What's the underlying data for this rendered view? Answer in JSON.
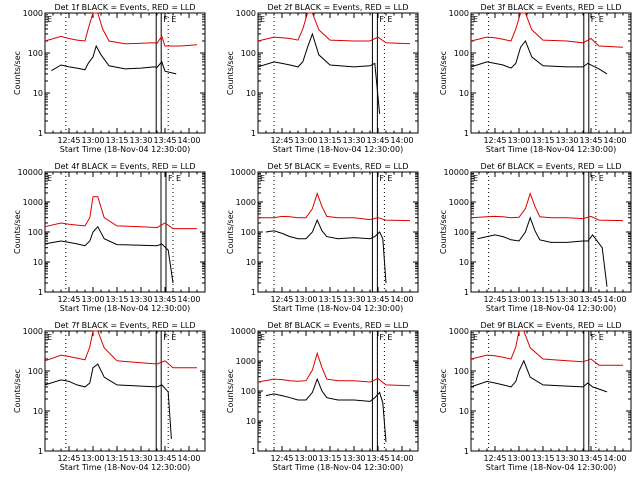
{
  "chart_data": [
    {
      "type": "line",
      "title": "Det 1f BLACK = Events, RED = LLD",
      "xlabel": "Start Time (18-Nov-04 12:30:00)",
      "ylabel": "Counts/sec",
      "ylog": true,
      "ylim": [
        1,
        1000
      ],
      "yticks": [
        "1",
        "10",
        "100",
        "1000"
      ],
      "xlim": [
        "12:30",
        "14:10"
      ],
      "xticks": [
        "12:45",
        "13:00",
        "13:15",
        "13:30",
        "13:45",
        "14:00"
      ],
      "vlines_dotted": [
        "12:43",
        "13:47"
      ],
      "flags_text": [
        "E",
        "F",
        "E"
      ],
      "series": [
        {
          "color": "#000000",
          "x": [
            "12:34",
            "12:40",
            "12:45",
            "12:50",
            "12:55",
            "12:57",
            "13:00",
            "13:02",
            "13:05",
            "13:10",
            "13:20",
            "13:30",
            "13:38",
            "13:40",
            "13:43",
            "13:45",
            "13:52"
          ],
          "y": [
            36,
            50,
            45,
            42,
            38,
            55,
            80,
            150,
            90,
            48,
            40,
            42,
            45,
            44,
            60,
            35,
            30
          ]
        },
        {
          "color": "#dd0000",
          "x": [
            "12:30",
            "12:40",
            "12:45",
            "12:50",
            "12:55",
            "12:57",
            "13:00",
            "13:03",
            "13:06",
            "13:10",
            "13:20",
            "13:30",
            "13:38",
            "13:40",
            "13:43",
            "13:45",
            "13:55",
            "14:05"
          ],
          "y": [
            200,
            260,
            230,
            210,
            200,
            400,
            1000,
            1000,
            400,
            200,
            170,
            175,
            180,
            175,
            260,
            150,
            150,
            160
          ]
        }
      ]
    },
    {
      "type": "line",
      "title": "Det 2f BLACK = Events, RED = LLD",
      "xlabel": "Start Time (18-Nov-04 12:30:00)",
      "ylabel": "Counts/sec",
      "ylog": true,
      "ylim": [
        1,
        1000
      ],
      "yticks": [
        "1",
        "10",
        "100",
        "1000"
      ],
      "xlim": [
        "12:30",
        "14:10"
      ],
      "xticks": [
        "12:45",
        "13:00",
        "13:15",
        "13:30",
        "13:45",
        "14:00"
      ],
      "vlines_dotted": [
        "12:40",
        "13:49"
      ],
      "flags_text": [
        "E",
        "F",
        "E"
      ],
      "series": [
        {
          "color": "#000000",
          "x": [
            "12:30",
            "12:40",
            "12:45",
            "12:50",
            "12:55",
            "12:58",
            "13:01",
            "13:04",
            "13:08",
            "13:15",
            "13:30",
            "13:40",
            "13:43",
            "13:46"
          ],
          "y": [
            45,
            60,
            55,
            50,
            45,
            60,
            140,
            300,
            90,
            50,
            45,
            48,
            55,
            3
          ]
        },
        {
          "color": "#dd0000",
          "x": [
            "12:30",
            "12:40",
            "12:45",
            "12:50",
            "12:55",
            "12:58",
            "13:01",
            "13:04",
            "13:08",
            "13:15",
            "13:30",
            "13:40",
            "13:45",
            "13:50",
            "14:05"
          ],
          "y": [
            200,
            250,
            240,
            230,
            210,
            400,
            1000,
            1000,
            380,
            210,
            200,
            200,
            250,
            180,
            170
          ]
        }
      ]
    },
    {
      "type": "line",
      "title": "Det 3f BLACK = Events, RED = LLD",
      "xlabel": "Start Time (18-Nov-04 12:30:00)",
      "ylabel": "Counts/sec",
      "ylog": true,
      "ylim": [
        1,
        1000
      ],
      "yticks": [
        "1",
        "10",
        "100",
        "1000"
      ],
      "xlim": [
        "12:30",
        "14:10"
      ],
      "xticks": [
        "12:45",
        "13:00",
        "13:15",
        "13:30",
        "13:45",
        "14:00"
      ],
      "vlines_dotted": [
        "12:41",
        "13:48"
      ],
      "flags_text": [
        "E",
        "F",
        "E"
      ],
      "series": [
        {
          "color": "#000000",
          "x": [
            "12:30",
            "12:40",
            "12:45",
            "12:50",
            "12:55",
            "12:58",
            "13:01",
            "13:04",
            "13:08",
            "13:15",
            "13:30",
            "13:40",
            "13:43",
            "13:50",
            "13:55"
          ],
          "y": [
            45,
            60,
            55,
            50,
            42,
            55,
            140,
            200,
            80,
            48,
            45,
            45,
            55,
            40,
            30
          ]
        },
        {
          "color": "#dd0000",
          "x": [
            "12:30",
            "12:40",
            "12:45",
            "12:50",
            "12:55",
            "12:58",
            "13:01",
            "13:04",
            "13:08",
            "13:15",
            "13:30",
            "13:40",
            "13:45",
            "13:50",
            "14:05"
          ],
          "y": [
            200,
            250,
            240,
            220,
            200,
            400,
            1000,
            1000,
            380,
            210,
            200,
            180,
            230,
            150,
            140
          ]
        }
      ]
    },
    {
      "type": "line",
      "title": "Det 4f BLACK = Events, RED = LLD",
      "xlabel": "Start Time (18-Nov-04 12:30:00)",
      "ylabel": "Counts/sec",
      "ylog": true,
      "ylim": [
        1,
        10000
      ],
      "yticks": [
        "1",
        "10",
        "100",
        "1000",
        "10000"
      ],
      "xlim": [
        "12:30",
        "14:10"
      ],
      "xticks": [
        "12:45",
        "13:00",
        "13:15",
        "13:30",
        "13:45",
        "14:00"
      ],
      "vlines_dotted": [
        "12:43",
        "13:50"
      ],
      "flags_text": [
        "E",
        "F",
        "E"
      ],
      "series": [
        {
          "color": "#000000",
          "x": [
            "12:30",
            "12:40",
            "12:45",
            "12:50",
            "12:55",
            "12:58",
            "13:00",
            "13:03",
            "13:07",
            "13:15",
            "13:30",
            "13:40",
            "13:43",
            "13:47",
            "13:50"
          ],
          "y": [
            40,
            50,
            45,
            40,
            35,
            50,
            100,
            150,
            60,
            38,
            36,
            35,
            40,
            25,
            2
          ]
        },
        {
          "color": "#dd0000",
          "x": [
            "12:30",
            "12:40",
            "12:45",
            "12:50",
            "12:55",
            "12:58",
            "13:00",
            "13:03",
            "13:07",
            "13:15",
            "13:30",
            "13:40",
            "13:45",
            "13:50",
            "14:05"
          ],
          "y": [
            150,
            200,
            180,
            170,
            160,
            300,
            1500,
            1500,
            300,
            160,
            150,
            140,
            200,
            130,
            130
          ]
        }
      ]
    },
    {
      "type": "line",
      "title": "Det 5f BLACK = Events, RED = LLD",
      "xlabel": "Start Time (18-Nov-04 12:30:00)",
      "ylabel": "Counts/sec",
      "ylog": true,
      "ylim": [
        1,
        10000
      ],
      "yticks": [
        "1",
        "10",
        "100",
        "1000",
        "10000"
      ],
      "xlim": [
        "12:30",
        "14:10"
      ],
      "xticks": [
        "12:45",
        "13:00",
        "13:15",
        "13:30",
        "13:45",
        "14:00"
      ],
      "vlines_dotted": [
        "12:40",
        "13:49"
      ],
      "flags_text": [
        "E",
        "F",
        "E"
      ],
      "series": [
        {
          "color": "#000000",
          "x": [
            "12:35",
            "12:40",
            "12:45",
            "12:50",
            "12:55",
            "13:00",
            "13:04",
            "13:07",
            "13:10",
            "13:13",
            "13:20",
            "13:30",
            "13:40",
            "13:43",
            "13:46",
            "13:48",
            "13:50"
          ],
          "y": [
            100,
            110,
            90,
            70,
            60,
            60,
            100,
            250,
            110,
            70,
            60,
            65,
            60,
            70,
            100,
            60,
            2
          ]
        },
        {
          "color": "#dd0000",
          "x": [
            "12:30",
            "12:40",
            "12:45",
            "12:50",
            "12:55",
            "13:00",
            "13:04",
            "13:07",
            "13:10",
            "13:13",
            "13:20",
            "13:30",
            "13:40",
            "13:45",
            "13:50",
            "14:05"
          ],
          "y": [
            300,
            300,
            330,
            320,
            300,
            300,
            600,
            1900,
            700,
            330,
            300,
            300,
            260,
            300,
            250,
            240
          ]
        }
      ]
    },
    {
      "type": "line",
      "title": "Det 6f BLACK = Events, RED = LLD",
      "xlabel": "Start Time (18-Nov-04 12:30:00)",
      "ylabel": "Counts/sec",
      "ylog": true,
      "ylim": [
        1,
        10000
      ],
      "yticks": [
        "1",
        "10",
        "100",
        "1000",
        "10000"
      ],
      "xlim": [
        "12:30",
        "14:10"
      ],
      "xticks": [
        "12:45",
        "13:00",
        "13:15",
        "13:30",
        "13:45",
        "14:00"
      ],
      "vlines_dotted": [
        "12:41",
        "13:48"
      ],
      "flags_text": [
        "E",
        "F",
        "E"
      ],
      "series": [
        {
          "color": "#000000",
          "x": [
            "12:34",
            "12:40",
            "12:45",
            "12:50",
            "12:55",
            "13:00",
            "13:04",
            "13:07",
            "13:10",
            "13:13",
            "13:20",
            "13:30",
            "13:40",
            "13:43",
            "13:46",
            "13:52",
            "13:55"
          ],
          "y": [
            60,
            70,
            80,
            70,
            55,
            50,
            100,
            300,
            110,
            55,
            45,
            45,
            50,
            50,
            80,
            30,
            1.5
          ]
        },
        {
          "color": "#dd0000",
          "x": [
            "12:30",
            "12:40",
            "12:45",
            "12:50",
            "12:55",
            "13:00",
            "13:04",
            "13:07",
            "13:10",
            "13:13",
            "13:20",
            "13:30",
            "13:40",
            "13:45",
            "13:50",
            "14:05"
          ],
          "y": [
            300,
            320,
            330,
            320,
            300,
            310,
            600,
            1900,
            700,
            320,
            300,
            300,
            280,
            330,
            250,
            240
          ]
        }
      ]
    },
    {
      "type": "line",
      "title": "Det 7f BLACK = Events, RED = LLD",
      "xlabel": "Start Time (18-Nov-04 12:30:00)",
      "ylabel": "Counts/sec",
      "ylog": true,
      "ylim": [
        1,
        1000
      ],
      "yticks": [
        "1",
        "10",
        "100",
        "1000"
      ],
      "xlim": [
        "12:30",
        "14:10"
      ],
      "xticks": [
        "12:45",
        "13:00",
        "13:15",
        "13:30",
        "13:45",
        "14:00"
      ],
      "vlines_dotted": [
        "12:43",
        "13:47"
      ],
      "flags_text": [
        "E",
        "F",
        "E"
      ],
      "series": [
        {
          "color": "#000000",
          "x": [
            "12:30",
            "12:40",
            "12:45",
            "12:50",
            "12:55",
            "12:58",
            "13:00",
            "13:03",
            "13:07",
            "13:15",
            "13:30",
            "13:40",
            "13:43",
            "13:47",
            "13:49"
          ],
          "y": [
            45,
            60,
            55,
            45,
            40,
            50,
            120,
            150,
            70,
            45,
            42,
            40,
            45,
            30,
            2
          ]
        },
        {
          "color": "#dd0000",
          "x": [
            "12:30",
            "12:40",
            "12:45",
            "12:50",
            "12:55",
            "12:58",
            "13:00",
            "13:03",
            "13:07",
            "13:15",
            "13:30",
            "13:40",
            "13:45",
            "13:50",
            "14:05"
          ],
          "y": [
            180,
            250,
            230,
            210,
            190,
            400,
            1000,
            1000,
            380,
            180,
            160,
            150,
            180,
            120,
            120
          ]
        }
      ]
    },
    {
      "type": "line",
      "title": "Det 8f BLACK = Events, RED = LLD",
      "xlabel": "Start Time (18-Nov-04 12:30:00)",
      "ylabel": "Counts/sec",
      "ylog": true,
      "ylim": [
        1,
        10000
      ],
      "yticks": [
        "1",
        "10",
        "100",
        "1000",
        "10000"
      ],
      "xlim": [
        "12:30",
        "14:10"
      ],
      "xticks": [
        "12:45",
        "13:00",
        "13:15",
        "13:30",
        "13:45",
        "14:00"
      ],
      "vlines_dotted": [
        "12:40",
        "13:49"
      ],
      "flags_text": [
        "E",
        "F",
        "E"
      ],
      "series": [
        {
          "color": "#000000",
          "x": [
            "12:35",
            "12:40",
            "12:45",
            "12:50",
            "12:55",
            "13:00",
            "13:04",
            "13:07",
            "13:10",
            "13:13",
            "13:20",
            "13:30",
            "13:40",
            "13:43",
            "13:46",
            "13:48",
            "13:50"
          ],
          "y": [
            70,
            80,
            70,
            60,
            50,
            50,
            90,
            250,
            100,
            60,
            50,
            50,
            45,
            60,
            90,
            40,
            2
          ]
        },
        {
          "color": "#dd0000",
          "x": [
            "12:30",
            "12:40",
            "12:45",
            "12:50",
            "12:55",
            "13:00",
            "13:04",
            "13:07",
            "13:10",
            "13:13",
            "13:20",
            "13:30",
            "13:40",
            "13:45",
            "13:50",
            "14:05"
          ],
          "y": [
            200,
            250,
            240,
            220,
            210,
            220,
            500,
            1800,
            600,
            250,
            220,
            220,
            200,
            260,
            160,
            150
          ]
        }
      ]
    },
    {
      "type": "line",
      "title": "Det 9f BLACK = Events, RED = LLD",
      "xlabel": "Start Time (18-Nov-04 12:30:00)",
      "ylabel": "Counts/sec",
      "ylog": true,
      "ylim": [
        1,
        1000
      ],
      "yticks": [
        "1",
        "10",
        "100",
        "1000"
      ],
      "xlim": [
        "12:30",
        "14:10"
      ],
      "xticks": [
        "12:45",
        "13:00",
        "13:15",
        "13:30",
        "13:45",
        "14:00"
      ],
      "vlines_dotted": [
        "12:41",
        "13:48"
      ],
      "flags_text": [
        "E",
        "F",
        "E"
      ],
      "series": [
        {
          "color": "#000000",
          "x": [
            "12:30",
            "12:40",
            "12:45",
            "12:50",
            "12:55",
            "12:58",
            "13:00",
            "13:03",
            "13:07",
            "13:15",
            "13:30",
            "13:40",
            "13:43",
            "13:46",
            "13:55"
          ],
          "y": [
            40,
            55,
            50,
            45,
            40,
            55,
            100,
            180,
            70,
            45,
            42,
            40,
            50,
            40,
            30
          ]
        },
        {
          "color": "#dd0000",
          "x": [
            "12:30",
            "12:40",
            "12:45",
            "12:50",
            "12:55",
            "12:58",
            "13:00",
            "13:03",
            "13:07",
            "13:15",
            "13:30",
            "13:40",
            "13:45",
            "13:50",
            "14:05"
          ],
          "y": [
            200,
            250,
            240,
            220,
            200,
            400,
            1000,
            1000,
            380,
            200,
            180,
            170,
            200,
            140,
            140
          ]
        }
      ]
    }
  ]
}
